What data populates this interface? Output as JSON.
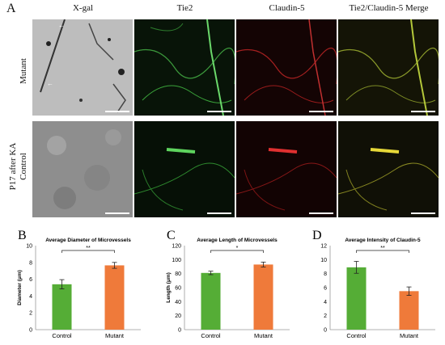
{
  "figure": {
    "panel_a": "A",
    "columns": [
      "X-gal",
      "Tie2",
      "Claudin-5",
      "Tie2/Claudin-5 Merge"
    ],
    "group_label": "P17 after KA",
    "rows": [
      "Mutant",
      "Control"
    ]
  },
  "colors": {
    "control": "#55ad36",
    "mutant": "#ef7a3a"
  },
  "chart_data": [
    {
      "panel": "B",
      "type": "bar",
      "title": "Average Diameter of Microvessels",
      "ylabel": "Diameter (μm)",
      "categories": [
        "Control",
        "Mutant"
      ],
      "values": [
        5.4,
        7.65
      ],
      "errors": [
        0.55,
        0.35
      ],
      "ylim": [
        0,
        10
      ],
      "yticks": [
        "0",
        "2",
        "4",
        "6",
        "8",
        "10"
      ],
      "significance": "**"
    },
    {
      "panel": "C",
      "type": "bar",
      "title": "Average Length of Microvessels",
      "ylabel": "Length (μm)",
      "categories": [
        "Control",
        "Mutant"
      ],
      "values": [
        81,
        93
      ],
      "errors": [
        2.5,
        3.5
      ],
      "ylim": [
        0,
        120
      ],
      "yticks": [
        "0",
        "20",
        "40",
        "60",
        "80",
        "100",
        "120"
      ],
      "significance": "*"
    },
    {
      "panel": "D",
      "type": "bar",
      "title": "Average Intensity of Claudin-5",
      "ylabel": "",
      "categories": [
        "Control",
        "Mutant"
      ],
      "values": [
        8.9,
        5.5
      ],
      "errors": [
        0.85,
        0.6
      ],
      "ylim": [
        0,
        12
      ],
      "yticks": [
        "0",
        "2",
        "4",
        "6",
        "8",
        "10",
        "12"
      ],
      "significance": "**"
    }
  ]
}
